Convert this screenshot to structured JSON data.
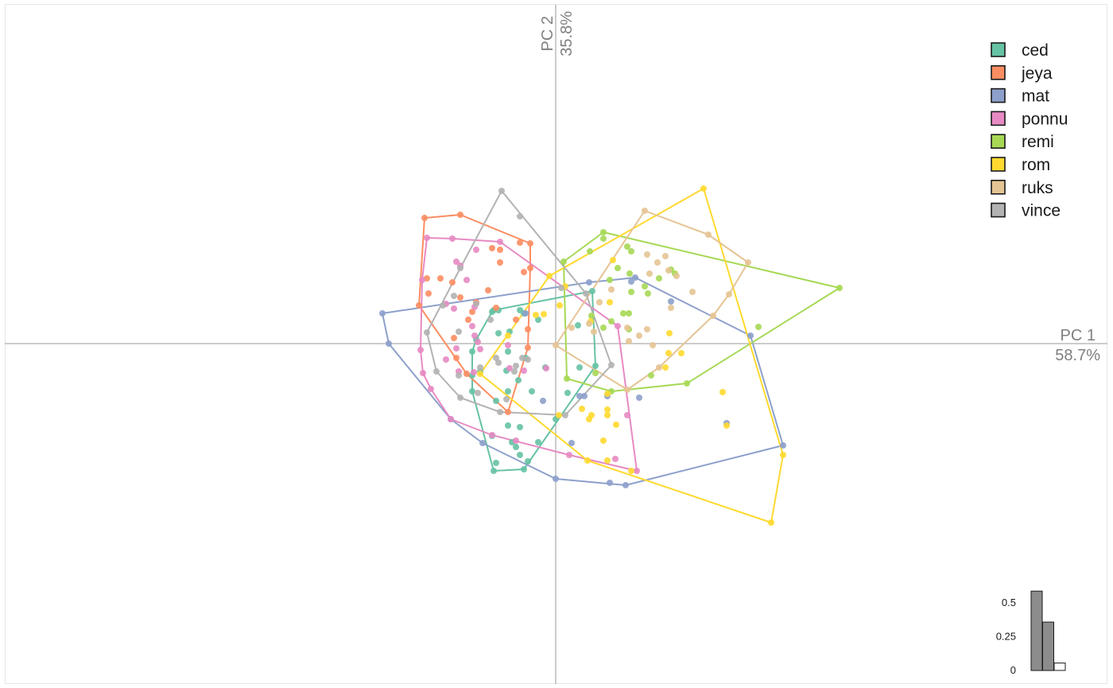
{
  "chart_data": {
    "type": "scatter",
    "title": "",
    "x_axis": {
      "label": "PC 1",
      "variance": "58.7%",
      "range": [
        -6.9,
        6.9
      ]
    },
    "y_axis": {
      "label": "PC 2",
      "variance": "35.8%",
      "range": [
        -4.26,
        4.26
      ]
    },
    "grid": false,
    "legend_placement": "top-right",
    "convex_hulls": true,
    "series": [
      {
        "name": "ced",
        "color": "#66c2a5",
        "points": [
          [
            -0.78,
            -1.6
          ],
          [
            -0.4,
            -1.58
          ],
          [
            -0.35,
            -1.48
          ],
          [
            -0.75,
            -1.5
          ],
          [
            -0.45,
            -1.4
          ],
          [
            -0.5,
            -1.3
          ],
          [
            -0.55,
            -1.24
          ],
          [
            -0.22,
            -1.24
          ],
          [
            -0.8,
            -1.16
          ],
          [
            -0.45,
            -1.05
          ],
          [
            -0.6,
            -1.03
          ],
          [
            -0.75,
            -0.72
          ],
          [
            -0.6,
            -0.6
          ],
          [
            -0.47,
            -0.46
          ],
          [
            -0.3,
            -0.6
          ],
          [
            -0.62,
            -0.34
          ],
          [
            -0.38,
            -0.18
          ],
          [
            -0.13,
            -0.3
          ],
          [
            -1.05,
            -0.1
          ],
          [
            -0.95,
            -0.35
          ],
          [
            -1.05,
            -0.6
          ],
          [
            -0.72,
            0.13
          ],
          [
            -0.58,
            0.15
          ],
          [
            -0.22,
            0.3
          ],
          [
            -0.4,
            0.38
          ],
          [
            0.46,
            0.66
          ],
          [
            0.28,
            0.23
          ],
          [
            0.5,
            -0.28
          ],
          [
            0.15,
            -0.62
          ],
          [
            0.3,
            -0.3
          ],
          [
            -1.0,
            0.05
          ],
          [
            -0.6,
            -0.1
          ],
          [
            -1.05,
            -0.4
          ],
          [
            0.0,
            -0.95
          ],
          [
            -0.78,
            0.42
          ],
          [
            -0.8,
            0.4
          ],
          [
            -0.72,
            0.42
          ],
          [
            -0.45,
            0.42
          ]
        ]
      },
      {
        "name": "jeya",
        "color": "#fc8d62",
        "points": [
          [
            -1.65,
            1.58
          ],
          [
            -1.2,
            1.62
          ],
          [
            -0.45,
            1.27
          ],
          [
            -0.32,
            1.26
          ],
          [
            -0.32,
            0.95
          ],
          [
            -0.35,
            0.18
          ],
          [
            -0.6,
            -0.86
          ],
          [
            -1.12,
            -0.38
          ],
          [
            -1.28,
            0.07
          ],
          [
            -1.62,
            0.82
          ],
          [
            -1.72,
            0.48
          ],
          [
            -1.6,
            0.63
          ],
          [
            -1.45,
            0.82
          ],
          [
            -1.3,
            0.77
          ],
          [
            -1.2,
            0.58
          ],
          [
            -1.0,
            0.52
          ],
          [
            -0.85,
            0.67
          ],
          [
            -0.8,
            1.2
          ],
          [
            -0.7,
            1.18
          ],
          [
            -0.4,
            0.9
          ],
          [
            -0.7,
            1.02
          ],
          [
            -0.75,
            0.45
          ],
          [
            -0.5,
            0.3
          ],
          [
            -1.05,
            0.4
          ],
          [
            -1.25,
            -0.18
          ],
          [
            -0.35,
            -0.05
          ],
          [
            -1.1,
            0.3
          ]
        ]
      },
      {
        "name": "mat",
        "color": "#8da0cb",
        "points": [
          [
            -2.18,
            0.38
          ],
          [
            -2.1,
            0.0
          ],
          [
            -0.38,
            0.38
          ],
          [
            0.42,
            0.77
          ],
          [
            1.0,
            0.83
          ],
          [
            2.45,
            0.1
          ],
          [
            2.86,
            -1.28
          ],
          [
            0.88,
            -1.78
          ],
          [
            0.68,
            -1.75
          ],
          [
            0.0,
            -1.7
          ],
          [
            -0.92,
            -1.25
          ],
          [
            -1.32,
            -0.95
          ],
          [
            1.05,
            -0.68
          ],
          [
            2.15,
            -1.0
          ],
          [
            0.2,
            -1.25
          ],
          [
            0.3,
            -0.66
          ],
          [
            0.36,
            -0.66
          ],
          [
            0.65,
            -0.66
          ],
          [
            0.95,
            0.78
          ],
          [
            1.45,
            0.53
          ],
          [
            -0.16,
            -0.72
          ]
        ]
      },
      {
        "name": "ponnu",
        "color": "#e78ac3",
        "points": [
          [
            -1.62,
            1.33
          ],
          [
            -1.3,
            1.32
          ],
          [
            -0.7,
            1.28
          ],
          [
            0.78,
            0.22
          ],
          [
            0.9,
            -0.9
          ],
          [
            1.02,
            -1.6
          ],
          [
            0.75,
            -1.45
          ],
          [
            0.17,
            -1.4
          ],
          [
            -0.5,
            -1.22
          ],
          [
            -0.8,
            -1.15
          ],
          [
            -1.32,
            -0.95
          ],
          [
            -1.57,
            -0.57
          ],
          [
            -1.67,
            -0.37
          ],
          [
            -1.7,
            -0.08
          ],
          [
            -1.68,
            0.8
          ],
          [
            -1.25,
            1.03
          ],
          [
            -1.0,
            1.18
          ],
          [
            -1.2,
            0.98
          ],
          [
            -1.12,
            0.8
          ],
          [
            -1.38,
            0.5
          ],
          [
            -1.28,
            0.44
          ],
          [
            -1.05,
            0.22
          ],
          [
            -1.02,
            0.1
          ],
          [
            -0.98,
            0.02
          ],
          [
            -0.95,
            -0.07
          ],
          [
            -1.38,
            -0.2
          ],
          [
            -0.58,
            -0.31
          ],
          [
            -0.4,
            -0.34
          ],
          [
            -0.12,
            -0.31
          ],
          [
            -1.22,
            -0.35
          ],
          [
            -1.03,
            -0.36
          ],
          [
            -1.25,
            -0.06
          ],
          [
            -1.02,
            0.46
          ],
          [
            -0.6,
            -0.02
          ]
        ]
      },
      {
        "name": "remi",
        "color": "#a6d854",
        "points": [
          [
            0.1,
            1.03
          ],
          [
            0.6,
            1.4
          ],
          [
            3.57,
            0.7
          ],
          [
            2.55,
            0.21
          ],
          [
            1.65,
            -0.5
          ],
          [
            1.2,
            -0.4
          ],
          [
            0.7,
            -0.6
          ],
          [
            0.14,
            -0.44
          ],
          [
            0.6,
            1.32
          ],
          [
            0.43,
            1.16
          ],
          [
            0.9,
            1.22
          ],
          [
            0.95,
            1.16
          ],
          [
            0.78,
            0.95
          ],
          [
            0.68,
            0.8
          ],
          [
            0.93,
            0.88
          ],
          [
            1.12,
            0.72
          ],
          [
            1.16,
            0.63
          ],
          [
            1.5,
            0.88
          ],
          [
            1.45,
            0.93
          ],
          [
            1.3,
            0.82
          ],
          [
            0.95,
            0.65
          ],
          [
            0.85,
            0.38
          ],
          [
            0.92,
            0.18
          ],
          [
            0.7,
            0.28
          ],
          [
            0.45,
            0.35
          ],
          [
            0.5,
            -0.37
          ],
          [
            0.92,
            0.38
          ],
          [
            0.6,
            0.2
          ]
        ]
      },
      {
        "name": "rom",
        "color": "#ffd92f",
        "points": [
          [
            1.86,
            1.95
          ],
          [
            2.86,
            -1.4
          ],
          [
            2.71,
            -2.25
          ],
          [
            0.95,
            -1.6
          ],
          [
            0.65,
            -1.47
          ],
          [
            0.4,
            -1.47
          ],
          [
            0.04,
            -0.9
          ],
          [
            -0.95,
            -0.38
          ],
          [
            -0.6,
            0.1
          ],
          [
            -0.08,
            0.85
          ],
          [
            0.12,
            0.72
          ],
          [
            0.44,
            0.28
          ],
          [
            0.72,
            1.05
          ],
          [
            0.68,
            0.52
          ],
          [
            1.43,
            0.13
          ],
          [
            1.58,
            -0.12
          ],
          [
            1.42,
            -0.12
          ],
          [
            1.38,
            -0.3
          ],
          [
            2.1,
            -0.61
          ],
          [
            2.15,
            -1.03
          ],
          [
            0.65,
            -0.63
          ],
          [
            0.65,
            -0.83
          ],
          [
            0.45,
            -0.9
          ],
          [
            0.33,
            -0.82
          ],
          [
            0.76,
            -1.02
          ],
          [
            0.42,
            -0.95
          ],
          [
            0.6,
            -1.22
          ],
          [
            0.65,
            -0.9
          ],
          [
            -0.15,
            0.37
          ],
          [
            -0.25,
            0.36
          ],
          [
            0.05,
            0.48
          ]
        ]
      },
      {
        "name": "ruks",
        "color": "#e5c494",
        "points": [
          [
            1.12,
            1.67
          ],
          [
            1.92,
            1.37
          ],
          [
            2.42,
            1.02
          ],
          [
            2.18,
            0.62
          ],
          [
            1.98,
            0.35
          ],
          [
            1.3,
            -0.3
          ],
          [
            0.9,
            -0.58
          ],
          [
            0.0,
            -0.02
          ],
          [
            0.2,
            0.2
          ],
          [
            0.55,
            0.52
          ],
          [
            1.18,
            0.88
          ],
          [
            1.38,
            1.1
          ],
          [
            1.28,
            1.02
          ],
          [
            1.42,
            0.92
          ],
          [
            1.72,
            0.65
          ],
          [
            1.45,
            0.45
          ],
          [
            1.15,
            0.18
          ],
          [
            1.05,
            0.1
          ],
          [
            0.92,
            0.03
          ],
          [
            1.22,
            -0.02
          ],
          [
            0.9,
            0.2
          ],
          [
            0.42,
            0.25
          ],
          [
            0.7,
            0.68
          ],
          [
            1.15,
            1.12
          ],
          [
            1.52,
            0.85
          ],
          [
            0.48,
            0.15
          ]
        ]
      },
      {
        "name": "vince",
        "color": "#b3b3b3",
        "points": [
          [
            -0.68,
            1.92
          ],
          [
            -0.45,
            1.6
          ],
          [
            0.07,
            0.7
          ],
          [
            0.38,
            0.63
          ],
          [
            0.7,
            -0.27
          ],
          [
            0.12,
            -0.9
          ],
          [
            -0.7,
            -0.86
          ],
          [
            -1.2,
            -0.68
          ],
          [
            -1.5,
            -0.35
          ],
          [
            -1.62,
            0.14
          ],
          [
            -1.42,
            0.48
          ],
          [
            -1.2,
            0.95
          ],
          [
            -1.28,
            0.6
          ],
          [
            -1.22,
            0.15
          ],
          [
            -0.82,
            0.3
          ],
          [
            -1.0,
            0.5
          ],
          [
            -1.22,
            -0.4
          ],
          [
            -0.98,
            -0.62
          ],
          [
            -0.75,
            -0.18
          ],
          [
            -0.42,
            -0.18
          ],
          [
            -0.35,
            -0.2
          ],
          [
            -0.52,
            -0.35
          ],
          [
            -0.62,
            -0.7
          ],
          [
            -0.72,
            -0.24
          ],
          [
            -0.95,
            -0.3
          ],
          [
            -0.5,
            -0.28
          ]
        ]
      }
    ],
    "eigenvalue_inset": {
      "bars": [
        0.587,
        0.358,
        0.055
      ],
      "y_ticks": [
        "0",
        "0.25",
        "0.5"
      ],
      "tick_values": [
        0,
        0.25,
        0.5
      ],
      "ylim": [
        0,
        0.6
      ],
      "bar_colors": [
        "#8c8c8c",
        "#8c8c8c",
        "#ffffff"
      ]
    }
  },
  "legend": {
    "items": [
      "ced",
      "jeya",
      "mat",
      "ponnu",
      "remi",
      "rom",
      "ruks",
      "vince"
    ]
  }
}
